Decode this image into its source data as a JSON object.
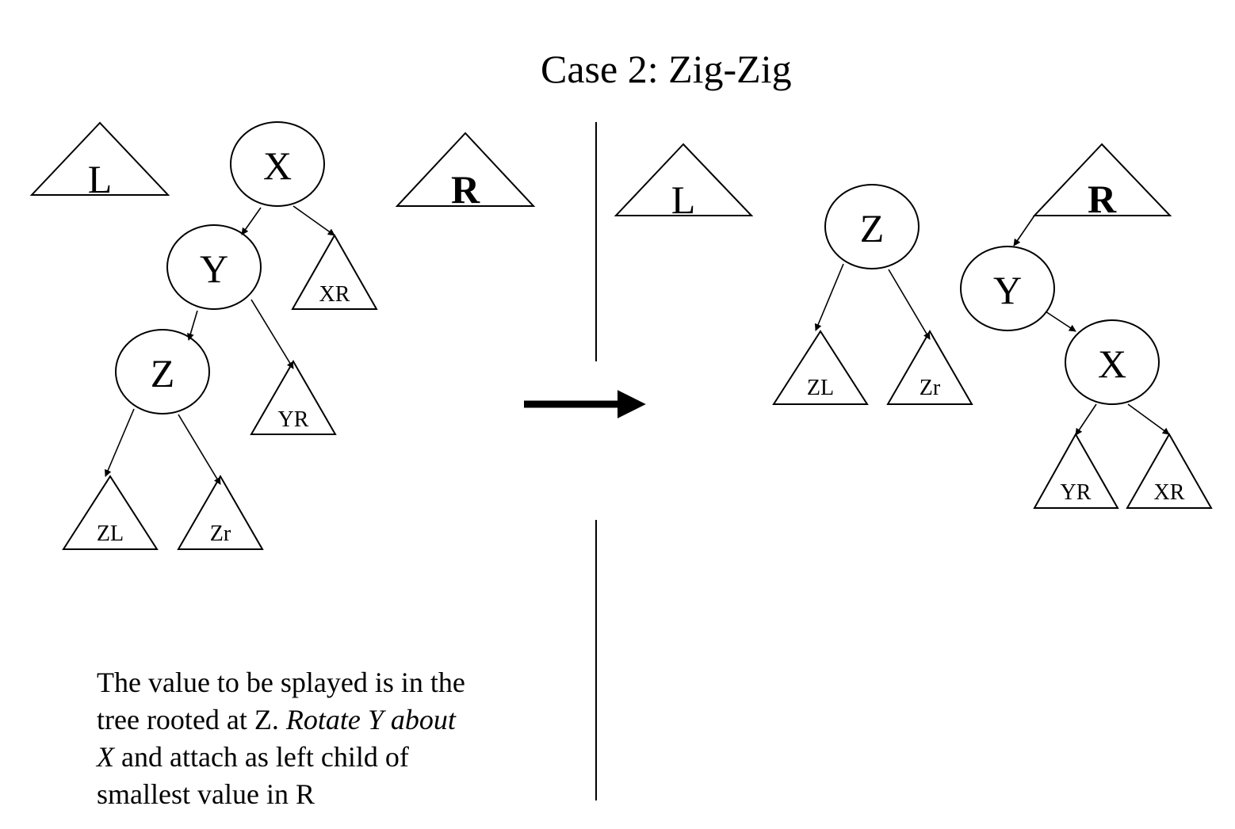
{
  "title": "Case 2: Zig-Zig",
  "before": {
    "left_subtree": "L",
    "right_subtree": "R",
    "node_x": "X",
    "node_y": "Y",
    "node_z": "Z",
    "sub_xr": "XR",
    "sub_yr": "YR",
    "sub_zl": "ZL",
    "sub_zr": "Zr"
  },
  "after": {
    "left_subtree": "L",
    "right_subtree": "R",
    "node_z": "Z",
    "node_y": "Y",
    "node_x": "X",
    "sub_zl": "ZL",
    "sub_zr": "Zr",
    "sub_yr": "YR",
    "sub_xr": "XR"
  },
  "caption": {
    "part1": "The value to be splayed is in the tree rooted at Z. ",
    "part2_italic": "Rotate Y about X",
    "part3": " and attach as left child of smallest value in R"
  }
}
